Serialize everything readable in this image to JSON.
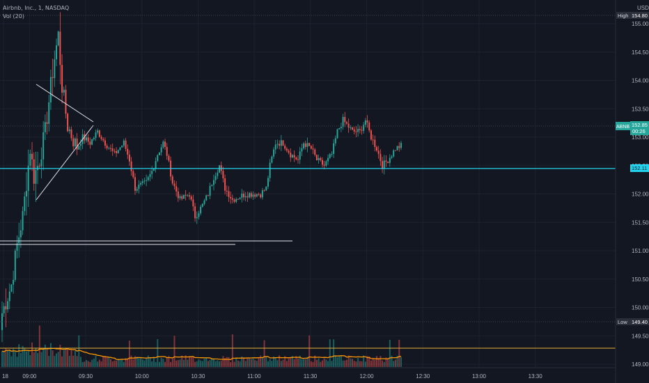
{
  "legend": {
    "symbol_line": "Airbnb, Inc., 1, NASDAQ",
    "indicator": "Vol (20)"
  },
  "price_axis": {
    "currency": "USD",
    "ticks": [
      "155.00",
      "154.50",
      "154.00",
      "153.50",
      "153.00",
      "152.50",
      "152.00",
      "151.50",
      "151.00",
      "150.50",
      "150.00",
      "149.50",
      "149.00"
    ]
  },
  "time_axis": {
    "labels": [
      "18",
      "09:00",
      "09:30",
      "10:00",
      "10:30",
      "11:00",
      "11:30",
      "12:00",
      "12:30",
      "13:00",
      "13:30"
    ]
  },
  "markers": {
    "high": {
      "label": "High",
      "value": "154.80"
    },
    "low": {
      "label": "Low",
      "value": "149.40"
    },
    "last": {
      "symbol": "ABNB",
      "value": "152.85",
      "countdown": "00:26"
    },
    "hline": {
      "value": "152.11"
    }
  },
  "colors": {
    "background": "#131722",
    "up": "#26a69a",
    "down": "#ef5350",
    "hline": "#22d3ee",
    "grid": "#1e222d",
    "axis_text": "#b2b5be",
    "volume_ma": "#ff9800",
    "volume_level": "#e5b13a",
    "drawing": "#e0e3eb"
  },
  "chart_data": {
    "type": "candlestick",
    "symbol": "ABNB",
    "interval": "1",
    "y_range": [
      148.75,
      155.1
    ],
    "price_anchors": [
      [
        "08:45",
        149.9
      ],
      [
        "08:50",
        150.4
      ],
      [
        "08:53",
        151.1
      ],
      [
        "08:56",
        151.6
      ],
      [
        "09:00",
        152.8
      ],
      [
        "09:02",
        152.3
      ],
      [
        "09:05",
        152.6
      ],
      [
        "09:08",
        153.1
      ],
      [
        "09:11",
        153.9
      ],
      [
        "09:13",
        154.4
      ],
      [
        "09:15",
        154.8
      ],
      [
        "09:17",
        153.9
      ],
      [
        "09:20",
        153.2
      ],
      [
        "09:25",
        152.8
      ],
      [
        "09:28",
        153.0
      ],
      [
        "09:32",
        152.9
      ],
      [
        "09:36",
        153.1
      ],
      [
        "09:40",
        152.9
      ],
      [
        "09:45",
        152.7
      ],
      [
        "09:50",
        152.9
      ],
      [
        "09:53",
        152.6
      ],
      [
        "09:56",
        152.1
      ],
      [
        "10:02",
        152.2
      ],
      [
        "10:05",
        152.4
      ],
      [
        "10:08",
        152.7
      ],
      [
        "10:11",
        152.9
      ],
      [
        "10:13",
        152.7
      ],
      [
        "10:16",
        152.2
      ],
      [
        "10:20",
        151.9
      ],
      [
        "10:25",
        152.0
      ],
      [
        "10:28",
        151.6
      ],
      [
        "10:32",
        151.8
      ],
      [
        "10:35",
        152.0
      ],
      [
        "10:38",
        152.3
      ],
      [
        "10:41",
        152.5
      ],
      [
        "10:44",
        152.1
      ],
      [
        "10:48",
        151.9
      ],
      [
        "10:55",
        152.0
      ],
      [
        "11:03",
        152.0
      ],
      [
        "11:06",
        152.1
      ],
      [
        "11:08",
        152.5
      ],
      [
        "11:11",
        152.9
      ],
      [
        "11:15",
        152.9
      ],
      [
        "11:19",
        152.7
      ],
      [
        "11:23",
        152.6
      ],
      [
        "11:26",
        152.9
      ],
      [
        "11:30",
        152.8
      ],
      [
        "11:33",
        152.6
      ],
      [
        "11:37",
        152.5
      ],
      [
        "11:41",
        152.7
      ],
      [
        "11:44",
        153.1
      ],
      [
        "11:47",
        153.3
      ],
      [
        "11:52",
        153.1
      ],
      [
        "11:56",
        153.1
      ],
      [
        "11:59",
        153.3
      ],
      [
        "12:02",
        153.0
      ],
      [
        "12:05",
        152.8
      ],
      [
        "12:08",
        152.5
      ],
      [
        "12:11",
        152.6
      ],
      [
        "12:15",
        152.8
      ],
      [
        "12:18",
        152.85
      ]
    ],
    "volume_level_line": true,
    "drawings": [
      "triangle lines",
      "horizontal ray at ~150.8",
      "horizontal line at 152.11"
    ]
  }
}
